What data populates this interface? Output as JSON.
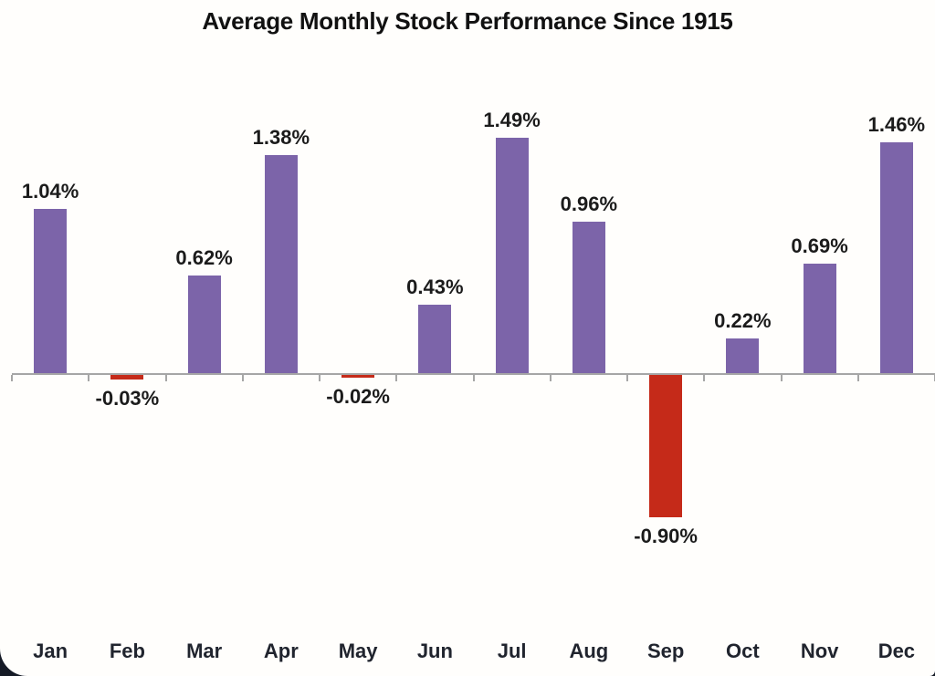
{
  "chart_data": {
    "type": "bar",
    "title": "Average Monthly Stock Performance Since 1915",
    "categories": [
      "Jan",
      "Feb",
      "Mar",
      "Apr",
      "May",
      "Jun",
      "Jul",
      "Aug",
      "Sep",
      "Oct",
      "Nov",
      "Dec"
    ],
    "values": [
      1.04,
      -0.03,
      0.62,
      1.38,
      -0.02,
      0.43,
      1.49,
      0.96,
      -0.9,
      0.22,
      0.69,
      1.46
    ],
    "data_labels": [
      "1.04%",
      "-0.03%",
      "0.62%",
      "1.38%",
      "-0.02%",
      "0.43%",
      "1.49%",
      "0.96%",
      "-0.90%",
      "0.22%",
      "0.69%",
      "1.46%"
    ],
    "xlabel": "",
    "ylabel": "",
    "ylim": [
      -1.0,
      1.6
    ],
    "grid": false,
    "legend_position": "none",
    "colors": {
      "positive_bar": "#7C64A9",
      "negative_bar": "#C52A19",
      "axis_line": "#A6A6A6",
      "value_label_text": "#1B1B1B",
      "tick_label_text": "#20242E",
      "title_text": "#111111",
      "background": "#FFFEFC",
      "page_corner_background": "#151A26"
    }
  }
}
